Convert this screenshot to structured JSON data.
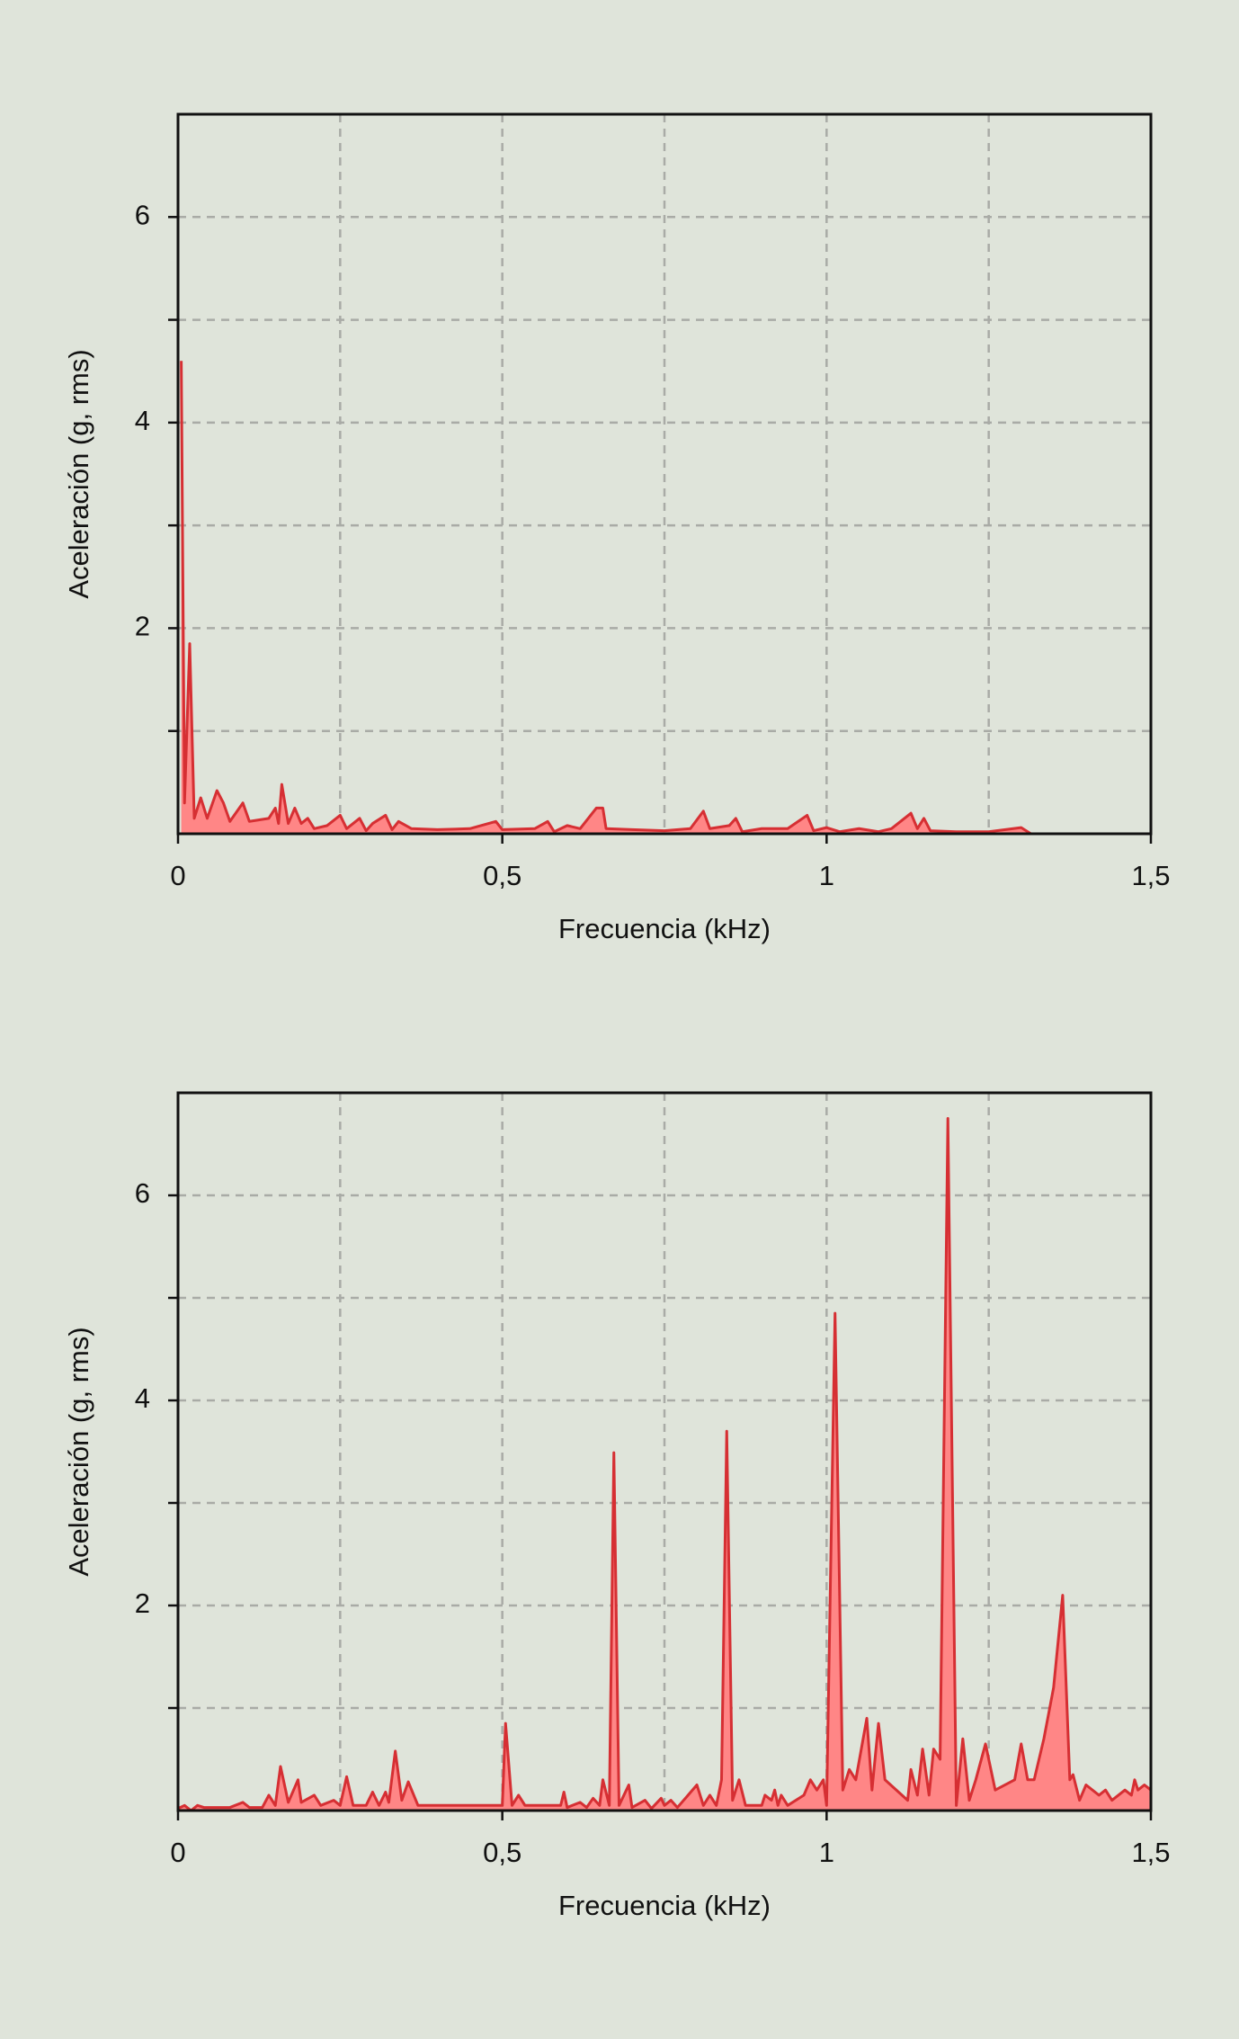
{
  "chart_data": [
    {
      "type": "area",
      "xlabel": "Frecuencia (kHz)",
      "ylabel": "Aceleración (g, rms)",
      "xlim": [
        0,
        1.5
      ],
      "ylim": [
        0,
        7
      ],
      "xticks": [
        0,
        {
          "value": 0.5,
          "label": "0,5"
        },
        1,
        {
          "value": 1.5,
          "label": "1,5"
        }
      ],
      "xgrid": [
        0.25,
        0.5,
        0.75,
        1,
        1.25
      ],
      "yticks": [
        2,
        4,
        6
      ],
      "yminor": [
        1,
        3,
        5
      ],
      "ygrid": [
        1,
        2,
        3,
        4,
        5,
        6
      ],
      "color": "#d62f33",
      "fill": "#ff8686",
      "x": [
        0.005,
        0.01,
        0.018,
        0.025,
        0.035,
        0.045,
        0.06,
        0.07,
        0.08,
        0.1,
        0.11,
        0.14,
        0.15,
        0.155,
        0.16,
        0.17,
        0.18,
        0.19,
        0.2,
        0.21,
        0.23,
        0.25,
        0.26,
        0.28,
        0.29,
        0.3,
        0.32,
        0.33,
        0.34,
        0.36,
        0.4,
        0.45,
        0.49,
        0.5,
        0.55,
        0.57,
        0.58,
        0.6,
        0.62,
        0.645,
        0.655,
        0.66,
        0.7,
        0.75,
        0.79,
        0.81,
        0.82,
        0.85,
        0.86,
        0.87,
        0.9,
        0.94,
        0.97,
        0.98,
        1.0,
        1.02,
        1.05,
        1.08,
        1.1,
        1.13,
        1.14,
        1.15,
        1.16,
        1.2,
        1.25,
        1.3,
        1.315
      ],
      "values": [
        4.6,
        0.3,
        1.85,
        0.15,
        0.35,
        0.15,
        0.42,
        0.3,
        0.12,
        0.3,
        0.12,
        0.15,
        0.25,
        0.1,
        0.48,
        0.1,
        0.25,
        0.1,
        0.15,
        0.05,
        0.08,
        0.18,
        0.05,
        0.15,
        0.03,
        0.1,
        0.18,
        0.04,
        0.12,
        0.05,
        0.04,
        0.05,
        0.12,
        0.04,
        0.05,
        0.12,
        0.02,
        0.08,
        0.05,
        0.25,
        0.25,
        0.05,
        0.04,
        0.03,
        0.05,
        0.22,
        0.05,
        0.08,
        0.15,
        0.02,
        0.05,
        0.05,
        0.18,
        0.03,
        0.06,
        0.02,
        0.05,
        0.02,
        0.05,
        0.2,
        0.05,
        0.15,
        0.03,
        0.02,
        0.02,
        0.06,
        0
      ]
    },
    {
      "type": "area",
      "xlabel": "Frecuencia (kHz)",
      "ylabel": "Aceleración (g, rms)",
      "xlim": [
        0,
        1.5
      ],
      "ylim": [
        0,
        7
      ],
      "xticks": [
        0,
        {
          "value": 0.5,
          "label": "0,5"
        },
        1,
        {
          "value": 1.5,
          "label": "1,5"
        }
      ],
      "xgrid": [
        0.25,
        0.5,
        0.75,
        1,
        1.25
      ],
      "yticks": [
        2,
        4,
        6
      ],
      "yminor": [
        1,
        3,
        5
      ],
      "ygrid": [
        1,
        2,
        3,
        4,
        5,
        6
      ],
      "color": "#d62f33",
      "fill": "#ff8686",
      "x": [
        0,
        0.01,
        0.02,
        0.03,
        0.04,
        0.08,
        0.1,
        0.11,
        0.13,
        0.14,
        0.15,
        0.158,
        0.17,
        0.185,
        0.19,
        0.21,
        0.22,
        0.24,
        0.25,
        0.26,
        0.27,
        0.29,
        0.3,
        0.31,
        0.32,
        0.325,
        0.335,
        0.345,
        0.355,
        0.37,
        0.5,
        0.505,
        0.515,
        0.525,
        0.535,
        0.59,
        0.595,
        0.6,
        0.62,
        0.63,
        0.64,
        0.65,
        0.655,
        0.665,
        0.672,
        0.68,
        0.695,
        0.7,
        0.72,
        0.73,
        0.745,
        0.75,
        0.76,
        0.77,
        0.8,
        0.81,
        0.82,
        0.83,
        0.838,
        0.846,
        0.855,
        0.865,
        0.875,
        0.9,
        0.905,
        0.915,
        0.92,
        0.925,
        0.93,
        0.94,
        0.965,
        0.975,
        0.985,
        0.995,
        1.0,
        1.013,
        1.025,
        1.035,
        1.045,
        1.062,
        1.07,
        1.08,
        1.09,
        1.125,
        1.13,
        1.14,
        1.148,
        1.158,
        1.165,
        1.175,
        1.187,
        1.2,
        1.21,
        1.22,
        1.23,
        1.245,
        1.26,
        1.29,
        1.3,
        1.31,
        1.32,
        1.335,
        1.35,
        1.364,
        1.375,
        1.38,
        1.39,
        1.4,
        1.42,
        1.43,
        1.44,
        1.46,
        1.47,
        1.475,
        1.48,
        1.49,
        1.5
      ],
      "values": [
        0.02,
        0.05,
        0,
        0.05,
        0.03,
        0.03,
        0.08,
        0.03,
        0.03,
        0.15,
        0.05,
        0.43,
        0.08,
        0.3,
        0.08,
        0.15,
        0.05,
        0.1,
        0.05,
        0.33,
        0.05,
        0.05,
        0.18,
        0.05,
        0.18,
        0.08,
        0.58,
        0.1,
        0.28,
        0.05,
        0.05,
        0.85,
        0.05,
        0.15,
        0.05,
        0.05,
        0.18,
        0.03,
        0.08,
        0.03,
        0.12,
        0.05,
        0.3,
        0.05,
        3.49,
        0.05,
        0.25,
        0.03,
        0.1,
        0.02,
        0.12,
        0.05,
        0.1,
        0.03,
        0.25,
        0.05,
        0.15,
        0.05,
        0.3,
        3.7,
        0.1,
        0.3,
        0.05,
        0.05,
        0.15,
        0.1,
        0.2,
        0.05,
        0.15,
        0.05,
        0.15,
        0.3,
        0.2,
        0.3,
        0.05,
        4.85,
        0.2,
        0.4,
        0.3,
        0.9,
        0.2,
        0.85,
        0.3,
        0.1,
        0.4,
        0.15,
        0.6,
        0.15,
        0.6,
        0.5,
        6.75,
        0.05,
        0.7,
        0.1,
        0.3,
        0.65,
        0.2,
        0.3,
        0.65,
        0.3,
        0.3,
        0.7,
        1.2,
        2.1,
        0.3,
        0.35,
        0.1,
        0.25,
        0.15,
        0.2,
        0.1,
        0.2,
        0.15,
        0.3,
        0.2,
        0.25,
        0.2
      ]
    }
  ]
}
